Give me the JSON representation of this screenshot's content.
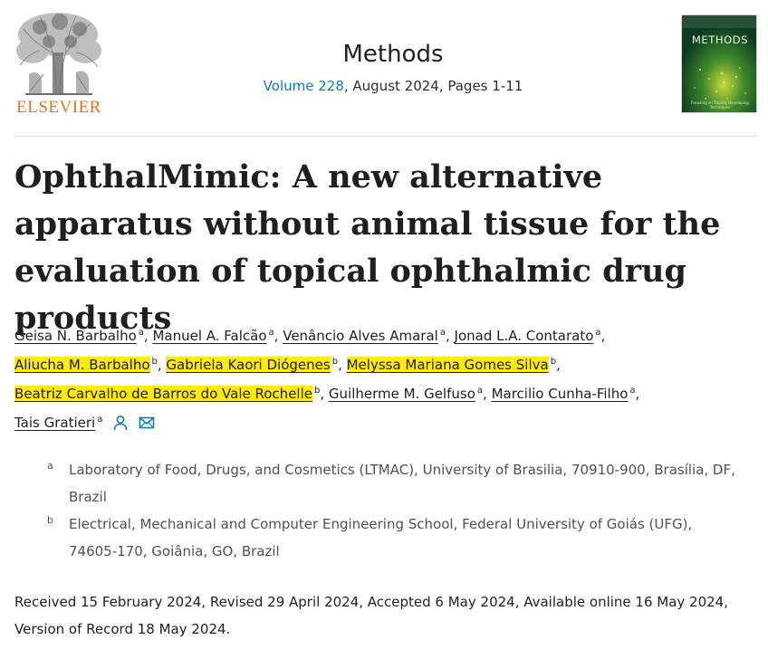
{
  "publisher": {
    "name": "ELSEVIER"
  },
  "journal": {
    "title": "Methods",
    "volume_link": "Volume 228",
    "issue_info": ", August 2024, Pages 1-11",
    "cover_title": "METHODS",
    "cover_caption": "Focusing on Rapidly Developing Techniques"
  },
  "article": {
    "title": "OphthalMimic: A new alternative apparatus without animal tissue for the evaluation of topical ophthalmic drug products"
  },
  "authors": [
    {
      "name": "Geisa N. Barbalho",
      "sup": "a",
      "sep": ", "
    },
    {
      "name": "Manuel A. Falcão",
      "sup": "a",
      "sep": ", "
    },
    {
      "name": "Venâncio Alves Amaral",
      "sup": "a",
      "sep": ", "
    },
    {
      "name": "Jonad L.A. Contarato",
      "sup": "a",
      "sep": ","
    },
    {
      "name": "Aliucha M. Barbalho",
      "sup": "b",
      "sep": ", "
    },
    {
      "name": "Gabriela Kaori Diógenes",
      "sup": "b",
      "sep": ", "
    },
    {
      "name": "Melyssa Mariana Gomes Silva",
      "sup": "b",
      "sep": ","
    },
    {
      "name": "Beatriz Carvalho de Barros do Vale Rochelle",
      "sup": "b",
      "sep": ", "
    },
    {
      "name": "Guilherme M. Gelfuso",
      "sup": "a",
      "sep": ", "
    },
    {
      "name": "Marcilio Cunha-Filho",
      "sup": "a",
      "sep": ","
    },
    {
      "name": "Tais Gratieri",
      "sup": "a",
      "sep": ""
    }
  ],
  "icons": {
    "person": "person-icon",
    "email": "envelope-icon"
  },
  "affiliations": [
    {
      "label": "a",
      "text": "Laboratory of Food, Drugs, and Cosmetics (LTMAC), University of Brasilia, 70910-900, Brasília, DF, Brazil"
    },
    {
      "label": "b",
      "text": "Electrical, Mechanical and Computer Engineering School, Federal University of Goiás (UFG), 74605-170, Goiânia, GO, Brazil"
    }
  ],
  "dates": "Received 15 February 2024, Revised 29 April 2024, Accepted 6 May 2024, Available online 16 May 2024, Version of Record 18 May 2024.",
  "colors": {
    "elsevier_orange": "#e9711c",
    "link_blue": "#0c7dbb",
    "highlight": "#ffeb0b"
  }
}
